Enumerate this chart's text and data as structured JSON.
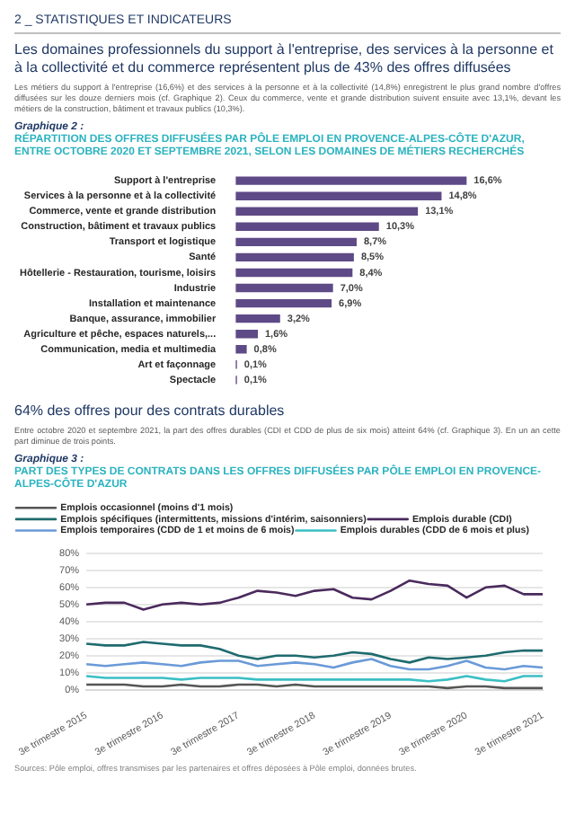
{
  "chart_data": [
    {
      "type": "bar",
      "orientation": "horizontal",
      "annotations": [
        "2 _ STATISTIQUES ET INDICATEURS",
        "Les domaines professionnels du support à l'entreprise, des services à la personne et à la collectivité et du commerce représentent plus de 43% des offres diffusées",
        "Les métiers du support à l'entreprise (16,6%) et des services à la personne et à la collectivité (14,8%) enregistrent le plus grand nombre d'offres diffusées sur les douze derniers mois (cf. Graphique 2). Ceux du commerce, vente et grande distribution suivent ensuite avec 13,1%, devant les métiers de la construction, bâtiment et travaux publics (10,3%).",
        "Graphique 2 :"
      ],
      "title": "RÉPARTITION DES OFFRES DIFFUSÉES PAR PÔLE EMPLOI EN PROVENCE-ALPES-CÔTE D'AZUR, ENTRE OCTOBRE 2020 ET SEPTEMBRE 2021, SELON LES DOMAINES DE MÉTIERS RECHERCHÉS",
      "categories": [
        "Support à l'entreprise",
        "Services à la personne et à la collectivité",
        "Commerce, vente et grande distribution",
        "Construction, bâtiment et travaux publics",
        "Transport et logistique",
        "Santé",
        "Hôtellerie - Restauration, tourisme, loisirs",
        "Industrie",
        "Installation et maintenance",
        "Banque, assurance, immobilier",
        "Agriculture et pêche, espaces naturels,...",
        "Communication, media et multimedia",
        "Art et façonnage",
        "Spectacle"
      ],
      "values": [
        16.6,
        14.8,
        13.1,
        10.3,
        8.7,
        8.5,
        8.4,
        7.0,
        6.9,
        3.2,
        1.6,
        0.8,
        0.1,
        0.1
      ],
      "value_labels": [
        "16,6%",
        "14,8%",
        "13,1%",
        "10,3%",
        "8,7%",
        "8,5%",
        "8,4%",
        "7,0%",
        "6,9%",
        "3,2%",
        "1,6%",
        "0,8%",
        "0,1%",
        "0,1%"
      ],
      "color": "#5e4a86"
    },
    {
      "type": "line",
      "annotations": [
        "64% des offres pour des contrats durables",
        "Entre octobre 2020 et septembre 2021, la part des offres durables (CDI et CDD de plus de six mois) atteint 64% (cf. Graphique 3). En un an cette part diminue de trois points.",
        "Graphique 3 :",
        "Sources: Pôle emploi, offres transmises par les partenaires et offres déposées à Pôle emploi, données brutes."
      ],
      "title": "PART DES TYPES DE CONTRATS DANS LES  OFFRES DIFFUSÉES PAR PÔLE EMPLOI EN PROVENCE-ALPES-CÔTE D'AZUR",
      "categories": [
        "3e trimestre 2015",
        null,
        null,
        null,
        "3e trimestre 2016",
        null,
        null,
        null,
        "3e trimestre 2017",
        null,
        null,
        null,
        "3e trimestre 2018",
        null,
        null,
        null,
        "3e trimestre 2019",
        null,
        null,
        null,
        "3e trimestre 2020",
        null,
        null,
        null,
        "3e trimestre 2021"
      ],
      "series": [
        {
          "name": "Emplois occasionnel (moins d'1 mois)",
          "color": "#555555",
          "values": [
            3,
            3,
            3,
            2,
            2,
            3,
            2,
            2,
            3,
            3,
            2,
            3,
            2,
            2,
            2,
            2,
            2,
            2,
            2,
            1,
            2,
            2,
            1,
            1,
            1
          ]
        },
        {
          "name": "Emplois spécifiques (intermittents, missions d'intérim, saisonniers)",
          "color": "#1f6b6e",
          "values": [
            27,
            26,
            26,
            28,
            27,
            26,
            26,
            24,
            20,
            18,
            20,
            20,
            19,
            20,
            22,
            21,
            18,
            16,
            19,
            18,
            19,
            20,
            22,
            23,
            23
          ]
        },
        {
          "name": "Emplois durable (CDI)",
          "color": "#4a2a5c",
          "values": [
            50,
            51,
            51,
            47,
            50,
            51,
            50,
            51,
            54,
            58,
            57,
            55,
            58,
            59,
            54,
            53,
            58,
            64,
            62,
            61,
            54,
            60,
            61,
            56,
            56
          ]
        },
        {
          "name": "Emplois temporaires (CDD de 1 et moins de 6 mois)",
          "color": "#6a9ad8",
          "values": [
            15,
            14,
            15,
            16,
            15,
            14,
            16,
            17,
            17,
            14,
            15,
            16,
            15,
            13,
            16,
            18,
            14,
            12,
            12,
            14,
            17,
            13,
            12,
            14,
            13
          ]
        },
        {
          "name": "Emplois durables (CDD de 6 mois et plus)",
          "color": "#3bbfc4",
          "values": [
            8,
            7,
            7,
            7,
            7,
            6,
            7,
            7,
            7,
            6,
            6,
            6,
            6,
            6,
            6,
            6,
            6,
            6,
            5,
            6,
            8,
            6,
            5,
            8,
            8
          ]
        }
      ],
      "ylim": [
        0,
        80
      ],
      "yticks": [
        {
          "value": 0,
          "label": "0%"
        },
        {
          "value": 10,
          "label": "10%"
        },
        {
          "value": 20,
          "label": "20%"
        },
        {
          "value": 30,
          "label": "30%"
        },
        {
          "value": 40,
          "label": "40%"
        },
        {
          "value": 50,
          "label": "50%"
        },
        {
          "value": 60,
          "label": "60%"
        },
        {
          "value": 70,
          "label": "70%"
        },
        {
          "value": 80,
          "label": "80%"
        }
      ],
      "grid": "y",
      "legend": "top left"
    }
  ]
}
